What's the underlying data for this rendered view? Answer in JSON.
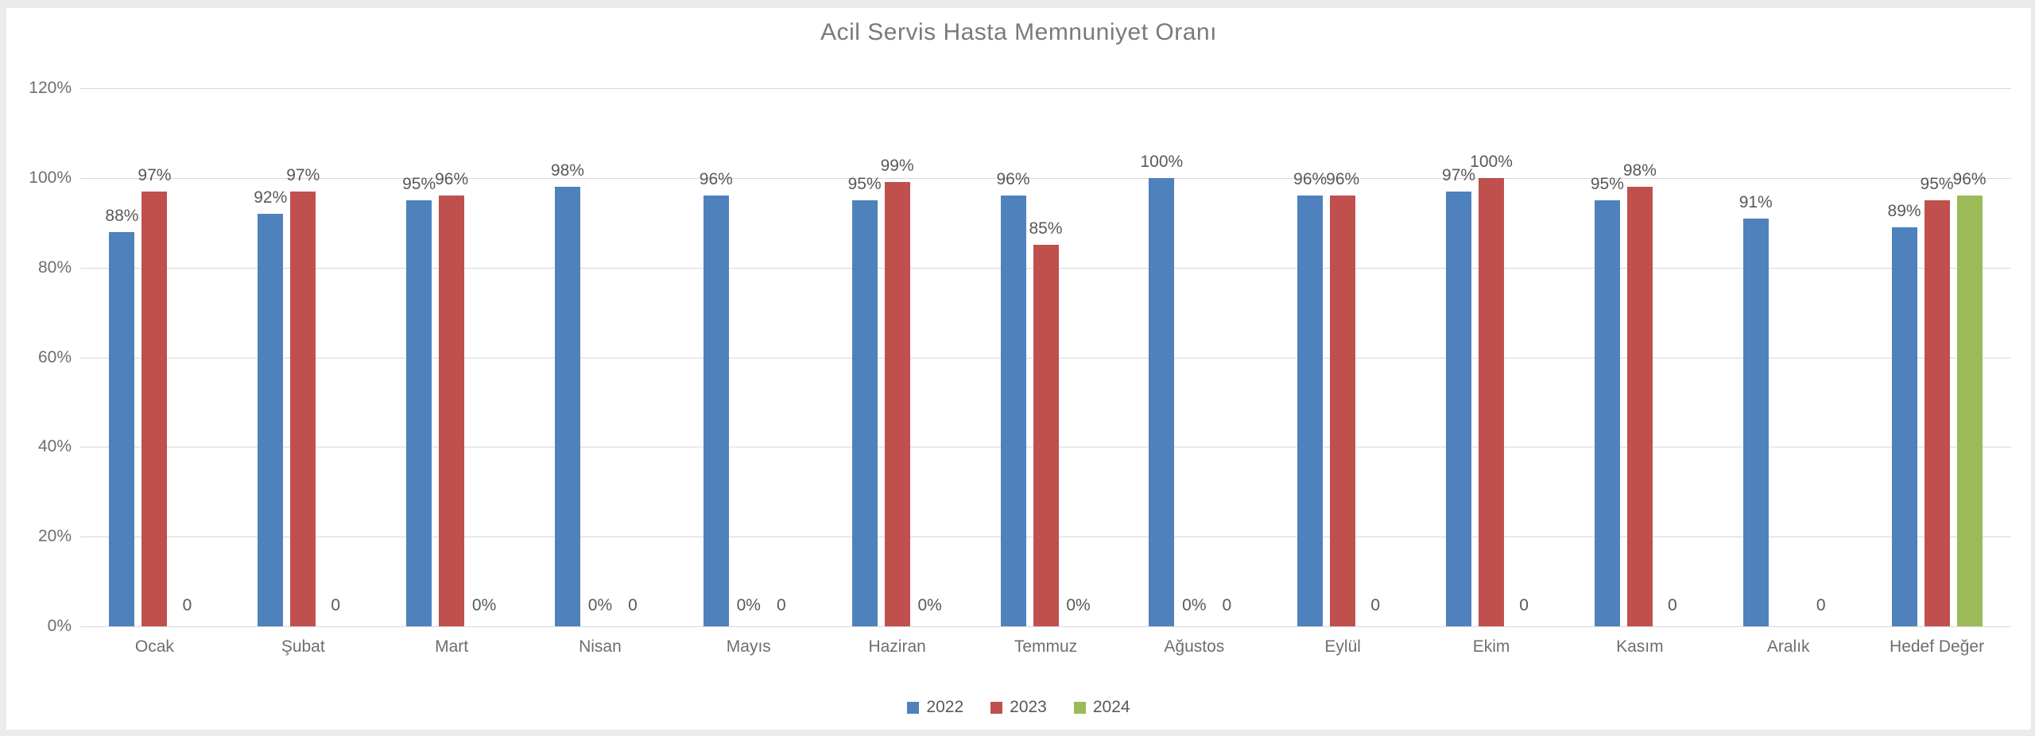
{
  "chart_data": {
    "type": "bar",
    "title": "Acil Servis Hasta Memnuniyet Oranı",
    "categories": [
      "Ocak",
      "Şubat",
      "Mart",
      "Nisan",
      "Mayıs",
      "Haziran",
      "Temmuz",
      "Ağustos",
      "Eylül",
      "Ekim",
      "Kasım",
      "Aralık",
      "Hedef Değer"
    ],
    "series": [
      {
        "name": "2022",
        "color": "#4F81BD",
        "values": [
          88,
          92,
          95,
          98,
          96,
          95,
          96,
          100,
          96,
          97,
          95,
          91,
          89
        ],
        "labels": [
          "88%",
          "92%",
          "95%",
          "98%",
          "96%",
          "95%",
          "96%",
          "100%",
          "96%",
          "97%",
          "95%",
          "91%",
          "89%"
        ]
      },
      {
        "name": "2023",
        "color": "#C0504D",
        "values": [
          97,
          97,
          96,
          0,
          0,
          99,
          85,
          0,
          96,
          100,
          98,
          null,
          95
        ],
        "labels": [
          "97%",
          "97%",
          "96%",
          "0%",
          "0%",
          "99%",
          "85%",
          "0%",
          "96%",
          "100%",
          "98%",
          null,
          "95%"
        ]
      },
      {
        "name": "2024",
        "color": "#9BBB59",
        "values": [
          0,
          0,
          0,
          0,
          0,
          0,
          0,
          0,
          0,
          0,
          0,
          0,
          96
        ],
        "labels": [
          "0",
          "0",
          "0%",
          "0",
          "0",
          "0%",
          "0%",
          "0",
          "0",
          "0",
          "0",
          "0",
          "96%"
        ]
      }
    ],
    "xlabel": "",
    "ylabel": "",
    "ylim": [
      0,
      120
    ],
    "yticks": {
      "values": [
        0,
        20,
        40,
        60,
        80,
        100,
        120
      ],
      "labels": [
        "0%",
        "20%",
        "40%",
        "60%",
        "80%",
        "100%",
        "120%"
      ]
    },
    "grid": true,
    "legend": {
      "position": "bottom-center",
      "entries": [
        "2022",
        "2023",
        "2024"
      ]
    }
  },
  "colors": {
    "page_background": "#ebebeb",
    "panel_background": "#ffffff",
    "gridline": "#d9d9d9",
    "title_text": "#7a7a7a",
    "axis_text": "#6e6e6e",
    "label_text": "#595959",
    "series_2022": "#4F81BD",
    "series_2023": "#C0504D",
    "series_2024": "#9BBB59"
  }
}
